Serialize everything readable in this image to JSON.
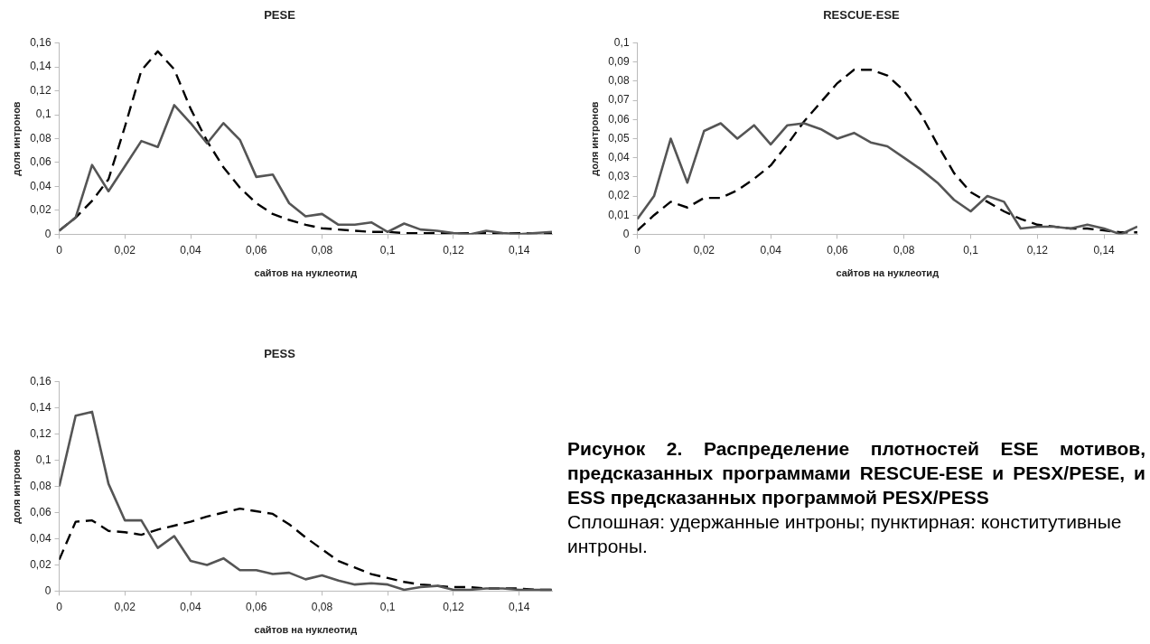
{
  "chart_data": [
    {
      "type": "line",
      "title": "PESE",
      "xlabel": "сайтов на нуклеотид",
      "ylabel": "доля интронов",
      "grid": false,
      "legend": false,
      "x": [
        0,
        0.005,
        0.01,
        0.015,
        0.02,
        0.025,
        0.03,
        0.035,
        0.04,
        0.045,
        0.05,
        0.055,
        0.06,
        0.065,
        0.07,
        0.075,
        0.08,
        0.085,
        0.09,
        0.095,
        0.1,
        0.105,
        0.11,
        0.115,
        0.12,
        0.125,
        0.13,
        0.135,
        0.14,
        0.145,
        0.15
      ],
      "xlim": [
        0,
        0.15
      ],
      "xticks": [
        {
          "value": 0,
          "label": "0"
        },
        {
          "value": 0.02,
          "label": "0,02"
        },
        {
          "value": 0.04,
          "label": "0,04"
        },
        {
          "value": 0.06,
          "label": "0,06"
        },
        {
          "value": 0.08,
          "label": "0,08"
        },
        {
          "value": 0.1,
          "label": "0,1"
        },
        {
          "value": 0.12,
          "label": "0,12"
        },
        {
          "value": 0.14,
          "label": "0,14"
        }
      ],
      "ylim": [
        0,
        0.16
      ],
      "yticks": [
        {
          "value": 0,
          "label": "0"
        },
        {
          "value": 0.02,
          "label": "0,02"
        },
        {
          "value": 0.04,
          "label": "0,04"
        },
        {
          "value": 0.06,
          "label": "0,06"
        },
        {
          "value": 0.08,
          "label": "0,08"
        },
        {
          "value": 0.1,
          "label": "0,1"
        },
        {
          "value": 0.12,
          "label": "0,12"
        },
        {
          "value": 0.14,
          "label": "0,14"
        },
        {
          "value": 0.16,
          "label": "0,16"
        }
      ],
      "series": [
        {
          "color": "#555555",
          "line_style": "solid",
          "values": [
            0.003,
            0.014,
            0.058,
            0.036,
            0.057,
            0.078,
            0.073,
            0.108,
            0.093,
            0.076,
            0.093,
            0.079,
            0.048,
            0.05,
            0.026,
            0.015,
            0.017,
            0.008,
            0.008,
            0.01,
            0.002,
            0.009,
            0.004,
            0.003,
            0.001,
            0,
            0.003,
            0.001,
            0,
            0.001,
            0.002
          ]
        },
        {
          "color": "#000000",
          "line_style": "dashed",
          "values": [
            0.003,
            0.014,
            0.028,
            0.046,
            0.09,
            0.137,
            0.153,
            0.138,
            0.105,
            0.078,
            0.056,
            0.039,
            0.026,
            0.017,
            0.012,
            0.008,
            0.005,
            0.004,
            0.003,
            0.002,
            0.002,
            0.001,
            0.001,
            0.001,
            0.001,
            0.001,
            0.001,
            0.001,
            0.001,
            0.001,
            0.001
          ]
        }
      ]
    },
    {
      "type": "line",
      "title": "RESCUE-ESE",
      "xlabel": "сайтов на нуклеотид",
      "ylabel": "доля интронов",
      "grid": false,
      "legend": false,
      "x": [
        0,
        0.005,
        0.01,
        0.015,
        0.02,
        0.025,
        0.03,
        0.035,
        0.04,
        0.045,
        0.05,
        0.055,
        0.06,
        0.065,
        0.07,
        0.075,
        0.08,
        0.085,
        0.09,
        0.095,
        0.1,
        0.105,
        0.11,
        0.115,
        0.12,
        0.125,
        0.13,
        0.135,
        0.14,
        0.145,
        0.15
      ],
      "xlim": [
        0,
        0.15
      ],
      "xticks": [
        {
          "value": 0,
          "label": "0"
        },
        {
          "value": 0.02,
          "label": "0,02"
        },
        {
          "value": 0.04,
          "label": "0,04"
        },
        {
          "value": 0.06,
          "label": "0,06"
        },
        {
          "value": 0.08,
          "label": "0,08"
        },
        {
          "value": 0.1,
          "label": "0,1"
        },
        {
          "value": 0.12,
          "label": "0,12"
        },
        {
          "value": 0.14,
          "label": "0,14"
        }
      ],
      "ylim": [
        0,
        0.1
      ],
      "yticks": [
        {
          "value": 0,
          "label": "0"
        },
        {
          "value": 0.01,
          "label": "0,01"
        },
        {
          "value": 0.02,
          "label": "0,02"
        },
        {
          "value": 0.03,
          "label": "0,03"
        },
        {
          "value": 0.04,
          "label": "0,04"
        },
        {
          "value": 0.05,
          "label": "0,05"
        },
        {
          "value": 0.06,
          "label": "0,06"
        },
        {
          "value": 0.07,
          "label": "0,07"
        },
        {
          "value": 0.08,
          "label": "0,08"
        },
        {
          "value": 0.09,
          "label": "0,09"
        },
        {
          "value": 0.1,
          "label": "0,1"
        }
      ],
      "series": [
        {
          "color": "#555555",
          "line_style": "solid",
          "values": [
            0.008,
            0.02,
            0.05,
            0.027,
            0.054,
            0.058,
            0.05,
            0.057,
            0.047,
            0.057,
            0.058,
            0.055,
            0.05,
            0.053,
            0.048,
            0.046,
            0.04,
            0.034,
            0.027,
            0.018,
            0.012,
            0.02,
            0.017,
            0.003,
            0.004,
            0.004,
            0.003,
            0.005,
            0.003,
            0,
            0.004
          ]
        },
        {
          "color": "#000000",
          "line_style": "dashed",
          "values": [
            0.002,
            0.01,
            0.017,
            0.014,
            0.019,
            0.019,
            0.023,
            0.029,
            0.036,
            0.047,
            0.059,
            0.069,
            0.079,
            0.086,
            0.086,
            0.083,
            0.075,
            0.063,
            0.047,
            0.032,
            0.022,
            0.017,
            0.012,
            0.008,
            0.005,
            0.004,
            0.003,
            0.003,
            0.002,
            0.001,
            0.001
          ]
        }
      ]
    },
    {
      "type": "line",
      "title": "PESS",
      "xlabel": "сайтов на нуклеотид",
      "ylabel": "доля интронов",
      "grid": false,
      "legend": false,
      "x": [
        0,
        0.005,
        0.01,
        0.015,
        0.02,
        0.025,
        0.03,
        0.035,
        0.04,
        0.045,
        0.05,
        0.055,
        0.06,
        0.065,
        0.07,
        0.075,
        0.08,
        0.085,
        0.09,
        0.095,
        0.1,
        0.105,
        0.11,
        0.115,
        0.12,
        0.125,
        0.13,
        0.135,
        0.14,
        0.145,
        0.15
      ],
      "xlim": [
        0,
        0.15
      ],
      "xticks": [
        {
          "value": 0,
          "label": "0"
        },
        {
          "value": 0.02,
          "label": "0,02"
        },
        {
          "value": 0.04,
          "label": "0,04"
        },
        {
          "value": 0.06,
          "label": "0,06"
        },
        {
          "value": 0.08,
          "label": "0,08"
        },
        {
          "value": 0.1,
          "label": "0,1"
        },
        {
          "value": 0.12,
          "label": "0,12"
        },
        {
          "value": 0.14,
          "label": "0,14"
        }
      ],
      "ylim": [
        0,
        0.16
      ],
      "yticks": [
        {
          "value": 0,
          "label": "0"
        },
        {
          "value": 0.02,
          "label": "0,02"
        },
        {
          "value": 0.04,
          "label": "0,04"
        },
        {
          "value": 0.06,
          "label": "0,06"
        },
        {
          "value": 0.08,
          "label": "0,08"
        },
        {
          "value": 0.1,
          "label": "0,1"
        },
        {
          "value": 0.12,
          "label": "0,12"
        },
        {
          "value": 0.14,
          "label": "0,14"
        },
        {
          "value": 0.16,
          "label": "0,16"
        }
      ],
      "series": [
        {
          "color": "#555555",
          "line_style": "solid",
          "values": [
            0.08,
            0.134,
            0.137,
            0.082,
            0.054,
            0.054,
            0.033,
            0.042,
            0.023,
            0.02,
            0.025,
            0.016,
            0.016,
            0.013,
            0.014,
            0.009,
            0.012,
            0.008,
            0.005,
            0.006,
            0.005,
            0.001,
            0.003,
            0.004,
            0.001,
            0.001,
            0.002,
            0.002,
            0.001,
            0.001,
            0.001
          ]
        },
        {
          "color": "#000000",
          "line_style": "dashed",
          "values": [
            0.024,
            0.053,
            0.054,
            0.046,
            0.045,
            0.043,
            0.047,
            0.05,
            0.053,
            0.057,
            0.06,
            0.063,
            0.061,
            0.059,
            0.051,
            0.041,
            0.032,
            0.023,
            0.018,
            0.013,
            0.01,
            0.007,
            0.005,
            0.004,
            0.003,
            0.003,
            0.002,
            0.002,
            0.002,
            0.001,
            0.001
          ]
        }
      ]
    },
    {
      "type": "other",
      "title": "Рисунок 2. Распределение плотностей ESE мотивов, предсказанных программами RESCUE-ESE и PESX/PESE, и ESS предсказанных программой PESX/PESS",
      "annotations": [
        "Сплошная: удержанные интроны; пунктирная: конститутивные интроны."
      ]
    }
  ]
}
